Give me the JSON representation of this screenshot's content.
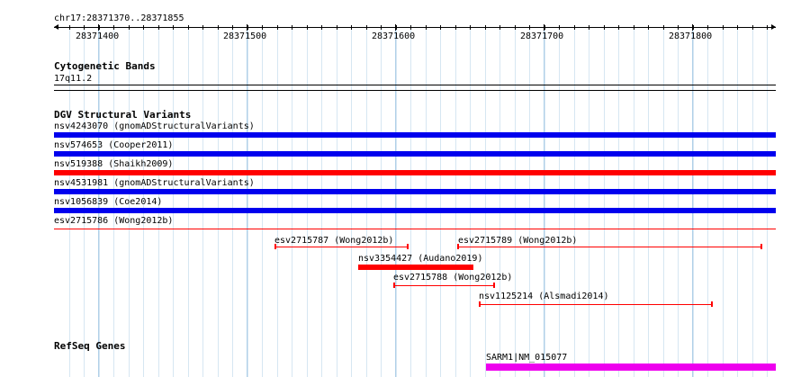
{
  "ruler": {
    "region": "chr17:28371370..28371855",
    "labels": [
      "28371400",
      "28371500",
      "28371600",
      "28371700",
      "28371800"
    ]
  },
  "cytoband": {
    "title": "Cytogenetic Bands",
    "band": "17q11.2"
  },
  "dgv": {
    "title": "DGV Structural Variants",
    "tracks": [
      {
        "label": "nsv4243070 (gnomADStructuralVariants)",
        "color": "#0000ee"
      },
      {
        "label": "nsv574653 (Cooper2011)",
        "color": "#0000ee"
      },
      {
        "label": "nsv519388 (Shaikh2009)",
        "color": "#ff0000"
      },
      {
        "label": "nsv4531981 (gnomADStructuralVariants)",
        "color": "#0000ee"
      },
      {
        "label": "nsv1056839 (Coe2014)",
        "color": "#0000ee"
      },
      {
        "label": "esv2715786 (Wong2012b)",
        "color": "#ff0000"
      }
    ],
    "features": [
      {
        "label": "esv2715787 (Wong2012b)"
      },
      {
        "label": "esv2715789 (Wong2012b)"
      },
      {
        "label": "nsv3354427 (Audano2019)"
      },
      {
        "label": "esv2715788 (Wong2012b)"
      },
      {
        "label": "nsv1125214 (Alsmadi2014)"
      }
    ]
  },
  "refseq": {
    "title": "RefSeq Genes",
    "gene": "SARM1|NM_015077",
    "color": "#ee00ee"
  }
}
